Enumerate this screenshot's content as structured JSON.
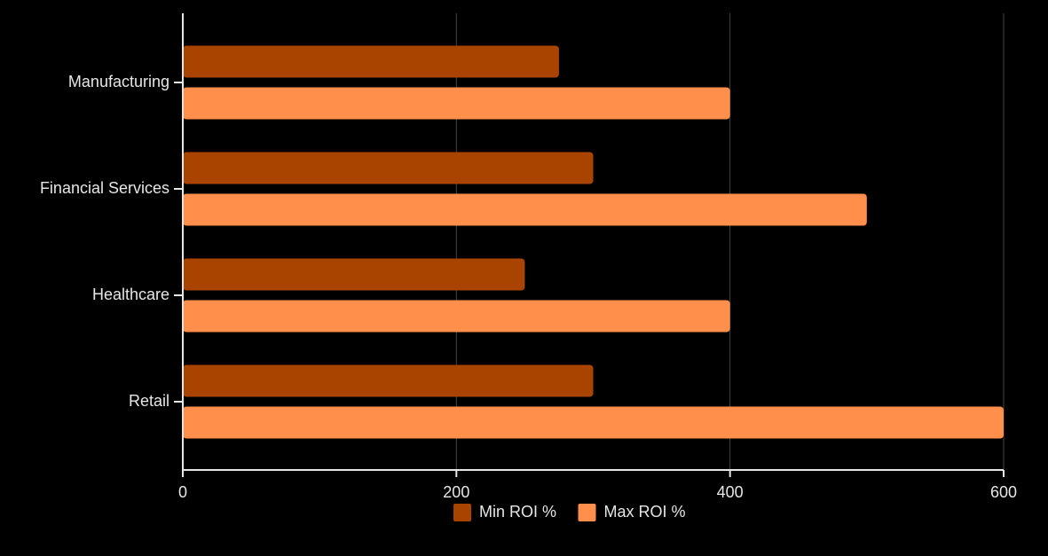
{
  "chart_data": {
    "type": "bar",
    "orientation": "horizontal",
    "categories": [
      "Manufacturing",
      "Financial Services",
      "Healthcare",
      "Retail"
    ],
    "series": [
      {
        "name": "Min ROI %",
        "color": "#a84300",
        "values": [
          275,
          300,
          250,
          300
        ]
      },
      {
        "name": "Max ROI %",
        "color": "#ff8f4b",
        "values": [
          400,
          500,
          400,
          600
        ]
      }
    ],
    "xlim": [
      0,
      600
    ],
    "xticks": [
      0,
      200,
      400,
      600
    ],
    "grid": true,
    "legend": "bottom"
  }
}
